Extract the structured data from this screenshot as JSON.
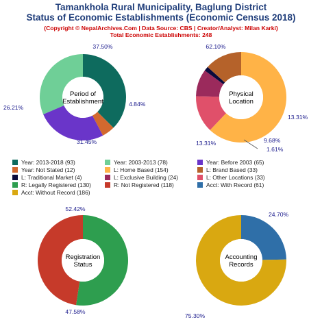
{
  "header": {
    "title_line1": "Tamankhola Rural Municipality, Baglung District",
    "title_line2": "Status of Economic Establishments (Economic Census 2018)",
    "credit": "(Copyright © NepalArchives.Com | Data Source: CBS | Creator/Analyst: Milan Karki)",
    "total": "Total Economic Establishments: 248"
  },
  "colors": {
    "title": "#1f3d7a",
    "subtitle": "#cc0000",
    "pct_label": "#1a1a8c"
  },
  "chart_data": [
    {
      "type": "pie",
      "center_label": [
        "Period of",
        "Establishment"
      ],
      "slices": [
        {
          "label": "Year: 2013-2018",
          "value": 93,
          "pct": "37.50%",
          "color": "#0e6b5e"
        },
        {
          "label": "Year: Not Stated",
          "value": 12,
          "pct": "4.84%",
          "color": "#d2692f"
        },
        {
          "label": "Year: Before 2003",
          "value": 65,
          "pct": "26.21%",
          "color": "#6a35c9"
        },
        {
          "label": "Year: 2003-2013",
          "value": 78,
          "pct": "31.45%",
          "color": "#6fcf97"
        }
      ]
    },
    {
      "type": "pie",
      "center_label": [
        "Physical",
        "Location"
      ],
      "slices": [
        {
          "label": "L: Home Based",
          "value": 154,
          "pct": "62.10%",
          "color": "#ffb347"
        },
        {
          "label": "L: Other Locations",
          "value": 33,
          "pct": "13.31%",
          "color": "#e0506a"
        },
        {
          "label": "L: Exclusive Building",
          "value": 24,
          "pct": "9.68%",
          "color": "#9b2a5c"
        },
        {
          "label": "L: Traditional Market",
          "value": 4,
          "pct": "1.61%",
          "color": "#0a0a3c"
        },
        {
          "label": "L: Brand Based",
          "value": 33,
          "pct": "13.31%",
          "color": "#b5622a"
        }
      ]
    },
    {
      "type": "pie",
      "center_label": [
        "Registration",
        "Status"
      ],
      "slices": [
        {
          "label": "R: Legally Registered",
          "value": 130,
          "pct": "52.42%",
          "color": "#2e9e4f"
        },
        {
          "label": "R: Not Registered",
          "value": 118,
          "pct": "47.58%",
          "color": "#c63a2a"
        }
      ]
    },
    {
      "type": "pie",
      "center_label": [
        "Accounting",
        "Records"
      ],
      "slices": [
        {
          "label": "Acct: With Record",
          "value": 61,
          "pct": "24.70%",
          "color": "#2f6fa8"
        },
        {
          "label": "Acct: Without Record",
          "value": 186,
          "pct": "75.30%",
          "color": "#d9a811"
        }
      ]
    }
  ],
  "legend": [
    {
      "text": "Year: 2013-2018 (93)",
      "color": "#0e6b5e"
    },
    {
      "text": "Year: 2003-2013 (78)",
      "color": "#6fcf97"
    },
    {
      "text": "Year: Before 2003 (65)",
      "color": "#6a35c9"
    },
    {
      "text": "Year: Not Stated (12)",
      "color": "#d2692f"
    },
    {
      "text": "L: Home Based (154)",
      "color": "#ffb347"
    },
    {
      "text": "L: Brand Based (33)",
      "color": "#b5622a"
    },
    {
      "text": "L: Traditional Market (4)",
      "color": "#0a0a3c"
    },
    {
      "text": "L: Exclusive Building (24)",
      "color": "#9b2a5c"
    },
    {
      "text": "L: Other Locations (33)",
      "color": "#e0506a"
    },
    {
      "text": "R: Legally Registered (130)",
      "color": "#2e9e4f"
    },
    {
      "text": "R: Not Registered (118)",
      "color": "#c63a2a"
    },
    {
      "text": "Acct: With Record (61)",
      "color": "#2f6fa8"
    },
    {
      "text": "Acct: Without Record (186)",
      "color": "#d9a811"
    }
  ]
}
